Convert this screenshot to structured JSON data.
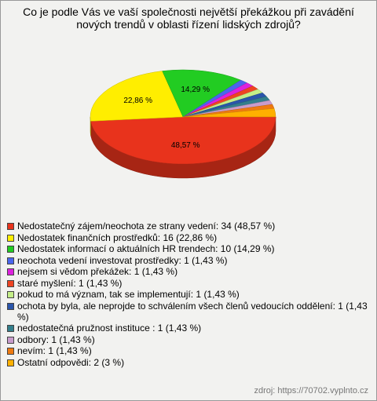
{
  "chart_data": {
    "type": "pie",
    "title": "Co je podle Vás ve vaší společnosti největší překážkou při zavádění nových trendů v oblasti řízení lidských zdrojů?",
    "categories": [
      "Nedostatečný zájem/neochota ze strany vedení: 34 (48,57 %)",
      "Nedostatek finančních prostředků: 16 (22,86 %)",
      "Nedostatek informací o aktuálních HR trendech: 10 (14,29 %)",
      "neochota vedení investovat prostředky: 1 (1,43 %)",
      "nejsem si vědom překážek: 1 (1,43 %)",
      "staré myšlení: 1 (1,43 %)",
      "pokud to má význam, tak se implementují: 1 (1,43 %)",
      "ochota by byla, ale neprojde to schválením všech členů vedoucích oddělení: 1 (1,43 %)",
      "nedostatečná pružnost instituce : 1 (1,43 %)",
      "odbory: 1 (1,43 %)",
      "nevím: 1 (1,43 %)",
      "Ostatní odpovědi: 2 (3 %)"
    ],
    "values": [
      48.57,
      22.86,
      14.29,
      1.43,
      1.43,
      1.43,
      1.43,
      1.43,
      1.43,
      1.43,
      1.43,
      2.86
    ],
    "value_labels": [
      "48,57 %",
      "22,86 %",
      "14,29 %",
      null,
      null,
      null,
      null,
      null,
      null,
      null,
      null,
      null
    ],
    "colors": [
      "#e8331c",
      "#ffee00",
      "#22cc22",
      "#4a66ee",
      "#dd22dd",
      "#ee4422",
      "#c4ee88",
      "#2a55aa",
      "#337f8c",
      "#c89ccc",
      "#ee7a11",
      "#ffb000"
    ],
    "source": "zdroj: https://70702.vyplnto.cz"
  }
}
